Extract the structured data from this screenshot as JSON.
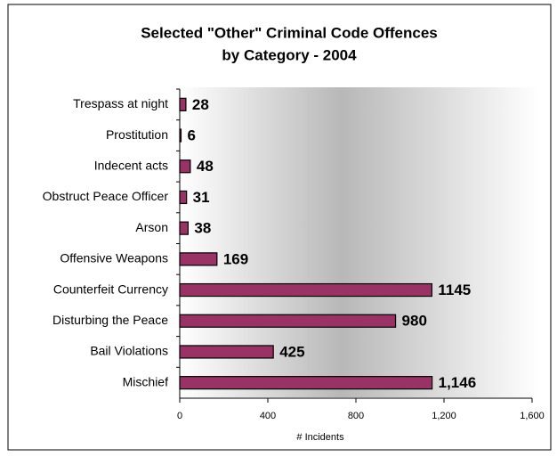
{
  "chart_data": {
    "type": "barh",
    "title": [
      "Selected \"Other\" Criminal Code Offences",
      "by Category - 2004"
    ],
    "xlabel": "# Incidents",
    "categories": [
      "Trespass at night",
      "Prostitution",
      "Indecent acts",
      "Obstruct Peace Officer",
      "Arson",
      "Offensive Weapons",
      "Counterfeit Currency",
      "Disturbing the Peace",
      "Bail Violations",
      "Mischief"
    ],
    "values": [
      28,
      6,
      48,
      31,
      38,
      169,
      1145,
      980,
      425,
      1146
    ],
    "value_labels": [
      "28",
      "6",
      "48",
      "31",
      "38",
      "169",
      "1145",
      "980",
      "425",
      "1,146"
    ],
    "color": "#993366",
    "xlim": [
      0,
      1600
    ],
    "xticks": [
      0,
      400,
      800,
      {
        "value": 1200,
        "label": "1,200"
      },
      {
        "value": 1600,
        "label": "1,600"
      }
    ]
  }
}
